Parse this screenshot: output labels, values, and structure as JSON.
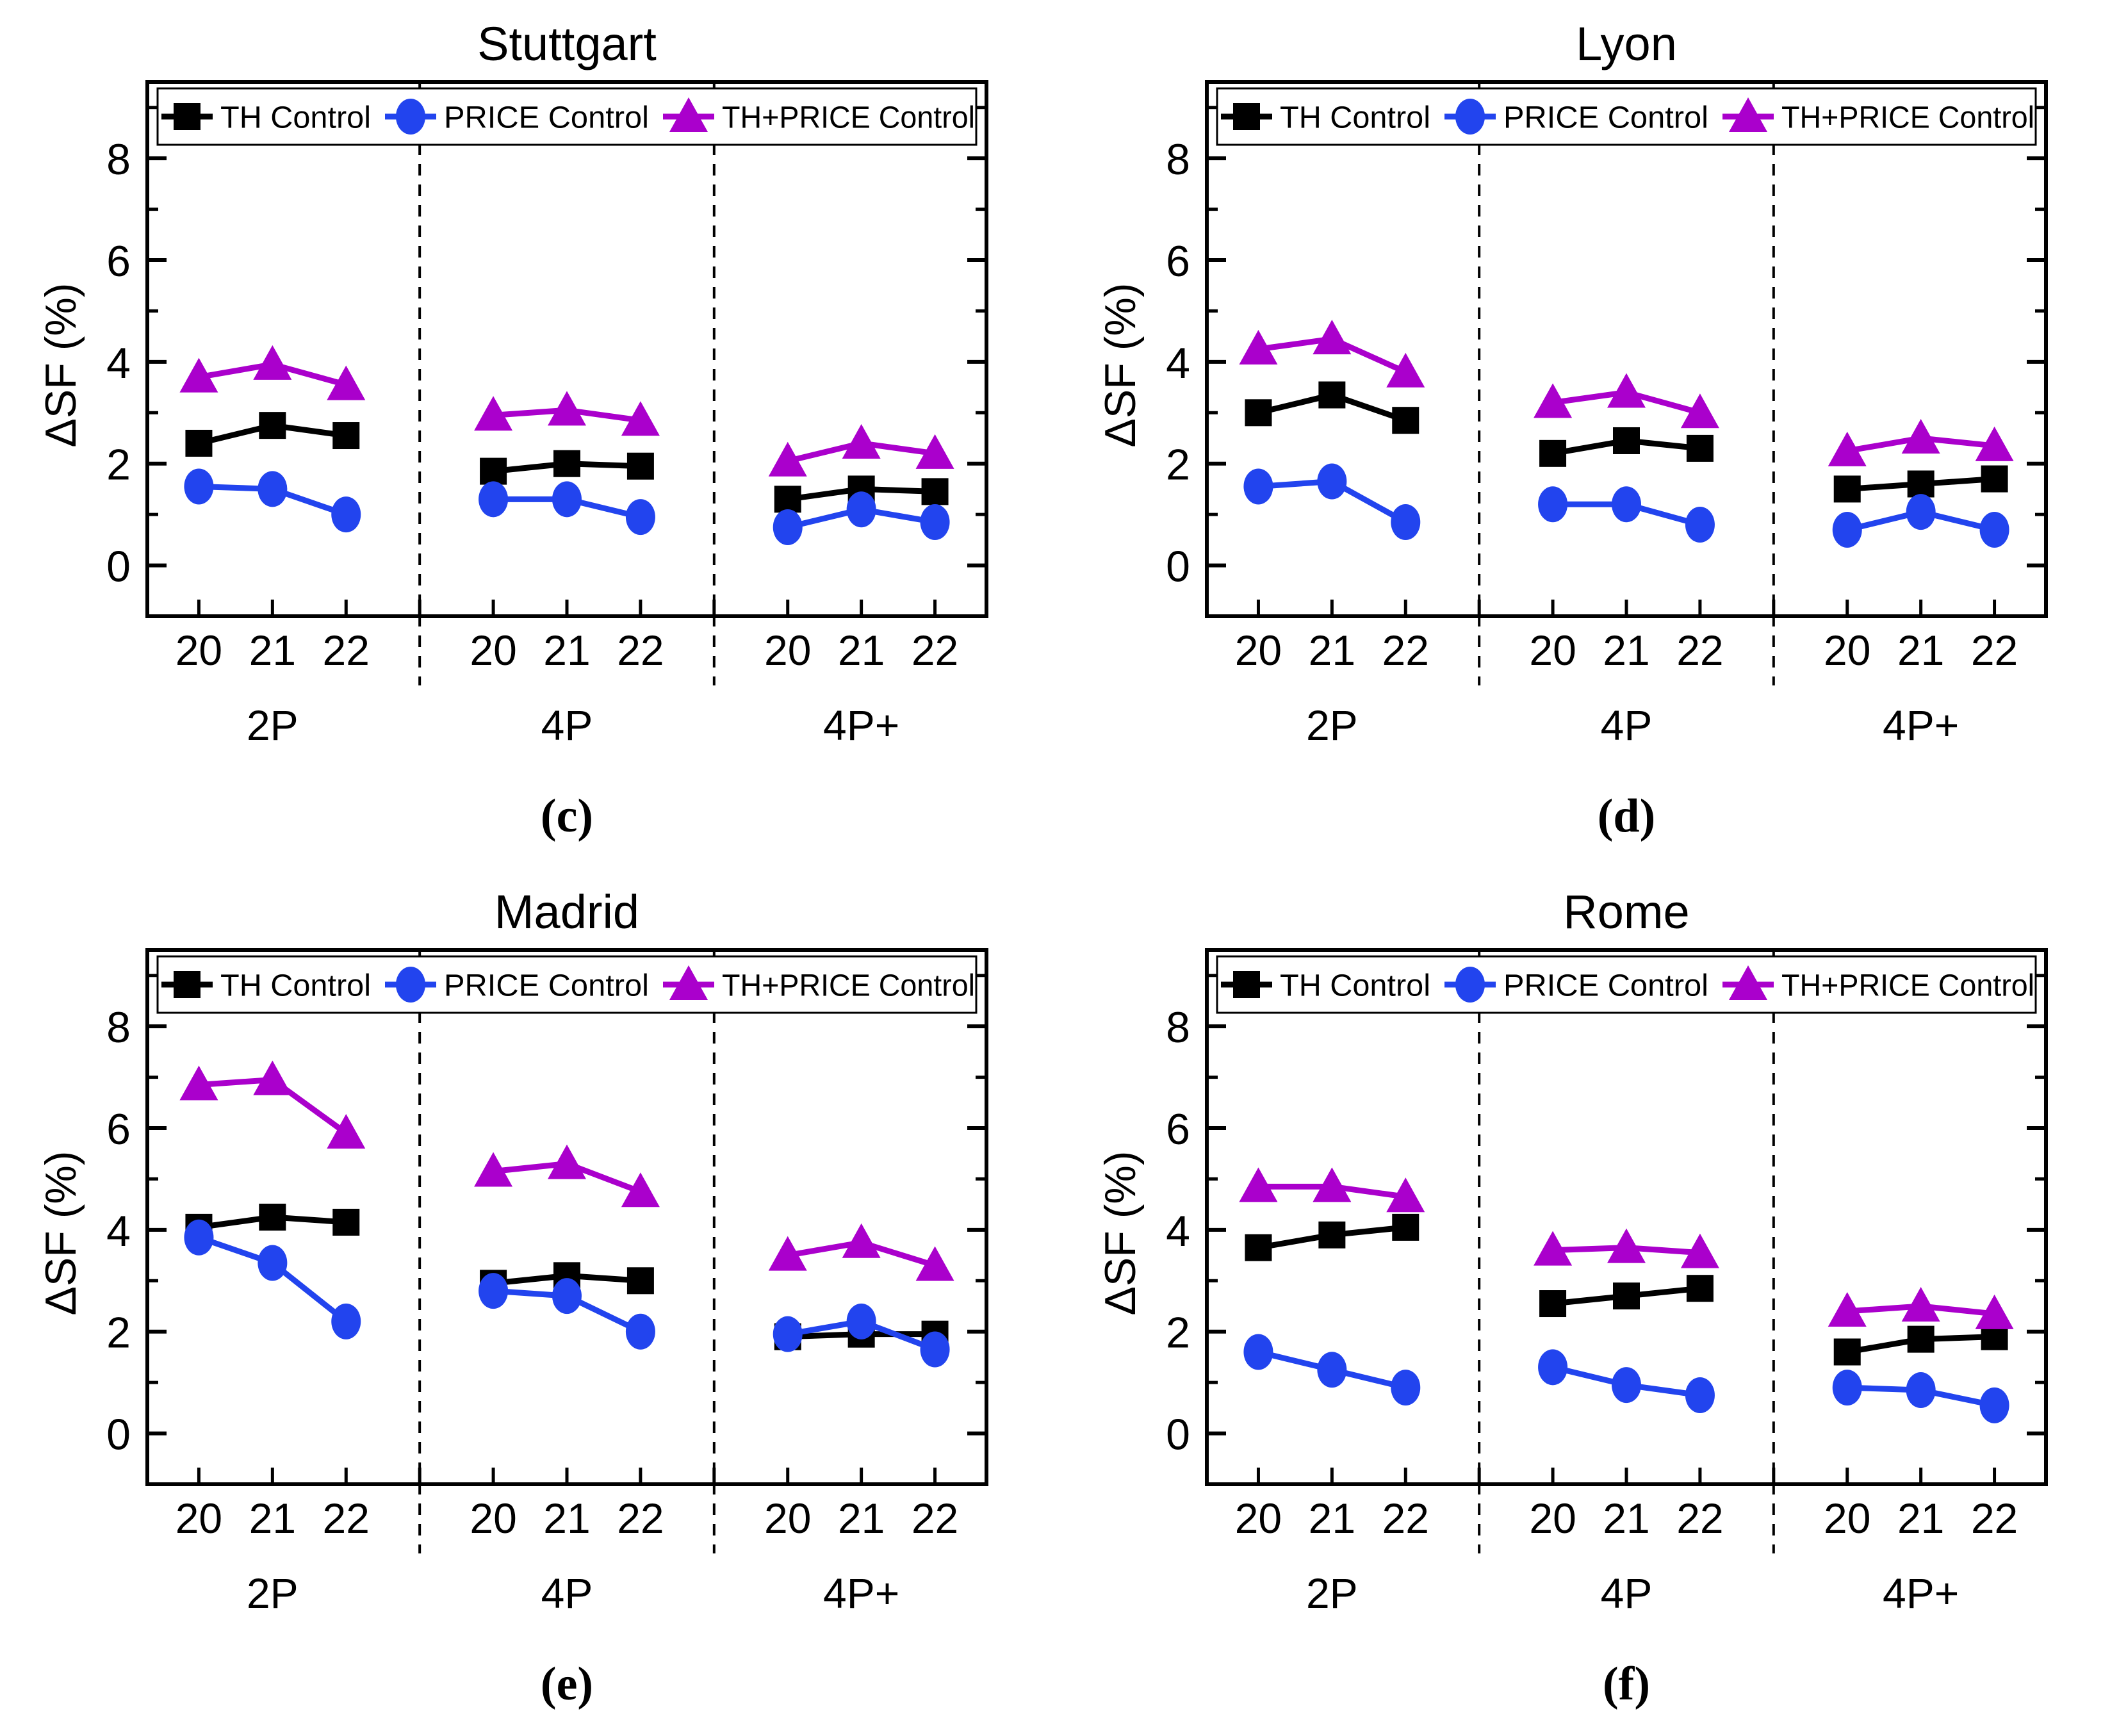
{
  "figure": {
    "ylabel": "ΔSF (%)",
    "captions": [
      "(c)",
      "(d)",
      "(e)",
      "(f)"
    ]
  },
  "chart_data": [
    {
      "type": "line",
      "title": "Stuttgart",
      "caption": "(c)",
      "ylabel": "ΔSF (%)",
      "ylim": [
        -1,
        9.5
      ],
      "yticks": [
        0,
        2,
        4,
        6,
        8
      ],
      "yticks_minor": [
        1,
        3,
        5,
        7,
        9
      ],
      "grid": false,
      "legend_position": "top",
      "groups": [
        "2P",
        "4P",
        "4P+"
      ],
      "years": [
        "20",
        "21",
        "22"
      ],
      "series": [
        {
          "name": "TH Control",
          "color": "#000000",
          "marker": "square",
          "values": [
            [
              2.4,
              2.75,
              2.55
            ],
            [
              1.85,
              2.0,
              1.95
            ],
            [
              1.3,
              1.5,
              1.45
            ]
          ]
        },
        {
          "name": "PRICE Control",
          "color": "#2244EE",
          "marker": "circle",
          "values": [
            [
              1.55,
              1.5,
              1.0
            ],
            [
              1.3,
              1.3,
              0.95
            ],
            [
              0.75,
              1.1,
              0.85
            ]
          ]
        },
        {
          "name": "TH+PRICE Control",
          "color": "#AA00CC",
          "marker": "triangle",
          "values": [
            [
              3.7,
              3.95,
              3.55
            ],
            [
              2.95,
              3.05,
              2.85
            ],
            [
              2.05,
              2.4,
              2.2
            ]
          ]
        }
      ]
    },
    {
      "type": "line",
      "title": "Lyon",
      "caption": "(d)",
      "ylabel": "ΔSF (%)",
      "ylim": [
        -1,
        9.5
      ],
      "yticks": [
        0,
        2,
        4,
        6,
        8
      ],
      "yticks_minor": [
        1,
        3,
        5,
        7,
        9
      ],
      "grid": false,
      "legend_position": "top",
      "groups": [
        "2P",
        "4P",
        "4P+"
      ],
      "years": [
        "20",
        "21",
        "22"
      ],
      "series": [
        {
          "name": "TH Control",
          "color": "#000000",
          "marker": "square",
          "values": [
            [
              3.0,
              3.35,
              2.85
            ],
            [
              2.2,
              2.45,
              2.3
            ],
            [
              1.5,
              1.6,
              1.7
            ]
          ]
        },
        {
          "name": "PRICE Control",
          "color": "#2244EE",
          "marker": "circle",
          "values": [
            [
              1.55,
              1.65,
              0.85
            ],
            [
              1.2,
              1.2,
              0.8
            ],
            [
              0.7,
              1.05,
              0.7
            ]
          ]
        },
        {
          "name": "TH+PRICE Control",
          "color": "#AA00CC",
          "marker": "triangle",
          "values": [
            [
              4.25,
              4.45,
              3.8
            ],
            [
              3.2,
              3.4,
              3.0
            ],
            [
              2.25,
              2.5,
              2.35
            ]
          ]
        }
      ]
    },
    {
      "type": "line",
      "title": "Madrid",
      "caption": "(e)",
      "ylabel": "ΔSF (%)",
      "ylim": [
        -1,
        9.5
      ],
      "yticks": [
        0,
        2,
        4,
        6,
        8
      ],
      "yticks_minor": [
        1,
        3,
        5,
        7,
        9
      ],
      "grid": false,
      "legend_position": "top",
      "groups": [
        "2P",
        "4P",
        "4P+"
      ],
      "years": [
        "20",
        "21",
        "22"
      ],
      "series": [
        {
          "name": "TH Control",
          "color": "#000000",
          "marker": "square",
          "values": [
            [
              4.05,
              4.25,
              4.15
            ],
            [
              2.95,
              3.1,
              3.0
            ],
            [
              1.9,
              1.95,
              1.95
            ]
          ]
        },
        {
          "name": "PRICE Control",
          "color": "#2244EE",
          "marker": "circle",
          "values": [
            [
              3.85,
              3.35,
              2.2
            ],
            [
              2.8,
              2.7,
              2.0
            ],
            [
              1.95,
              2.2,
              1.65
            ]
          ]
        },
        {
          "name": "TH+PRICE Control",
          "color": "#AA00CC",
          "marker": "triangle",
          "values": [
            [
              6.85,
              6.95,
              5.9
            ],
            [
              5.15,
              5.3,
              4.75
            ],
            [
              3.5,
              3.75,
              3.3
            ]
          ]
        }
      ]
    },
    {
      "type": "line",
      "title": "Rome",
      "caption": "(f)",
      "ylabel": "ΔSF (%)",
      "ylim": [
        -1,
        9.5
      ],
      "yticks": [
        0,
        2,
        4,
        6,
        8
      ],
      "yticks_minor": [
        1,
        3,
        5,
        7,
        9
      ],
      "grid": false,
      "legend_position": "top",
      "groups": [
        "2P",
        "4P",
        "4P+"
      ],
      "years": [
        "20",
        "21",
        "22"
      ],
      "series": [
        {
          "name": "TH Control",
          "color": "#000000",
          "marker": "square",
          "values": [
            [
              3.65,
              3.9,
              4.05
            ],
            [
              2.55,
              2.7,
              2.85
            ],
            [
              1.6,
              1.85,
              1.9
            ]
          ]
        },
        {
          "name": "PRICE Control",
          "color": "#2244EE",
          "marker": "circle",
          "values": [
            [
              1.6,
              1.25,
              0.9
            ],
            [
              1.3,
              0.95,
              0.75
            ],
            [
              0.9,
              0.85,
              0.55
            ]
          ]
        },
        {
          "name": "TH+PRICE Control",
          "color": "#AA00CC",
          "marker": "triangle",
          "values": [
            [
              4.85,
              4.85,
              4.65
            ],
            [
              3.6,
              3.65,
              3.55
            ],
            [
              2.4,
              2.5,
              2.35
            ]
          ]
        }
      ]
    }
  ]
}
